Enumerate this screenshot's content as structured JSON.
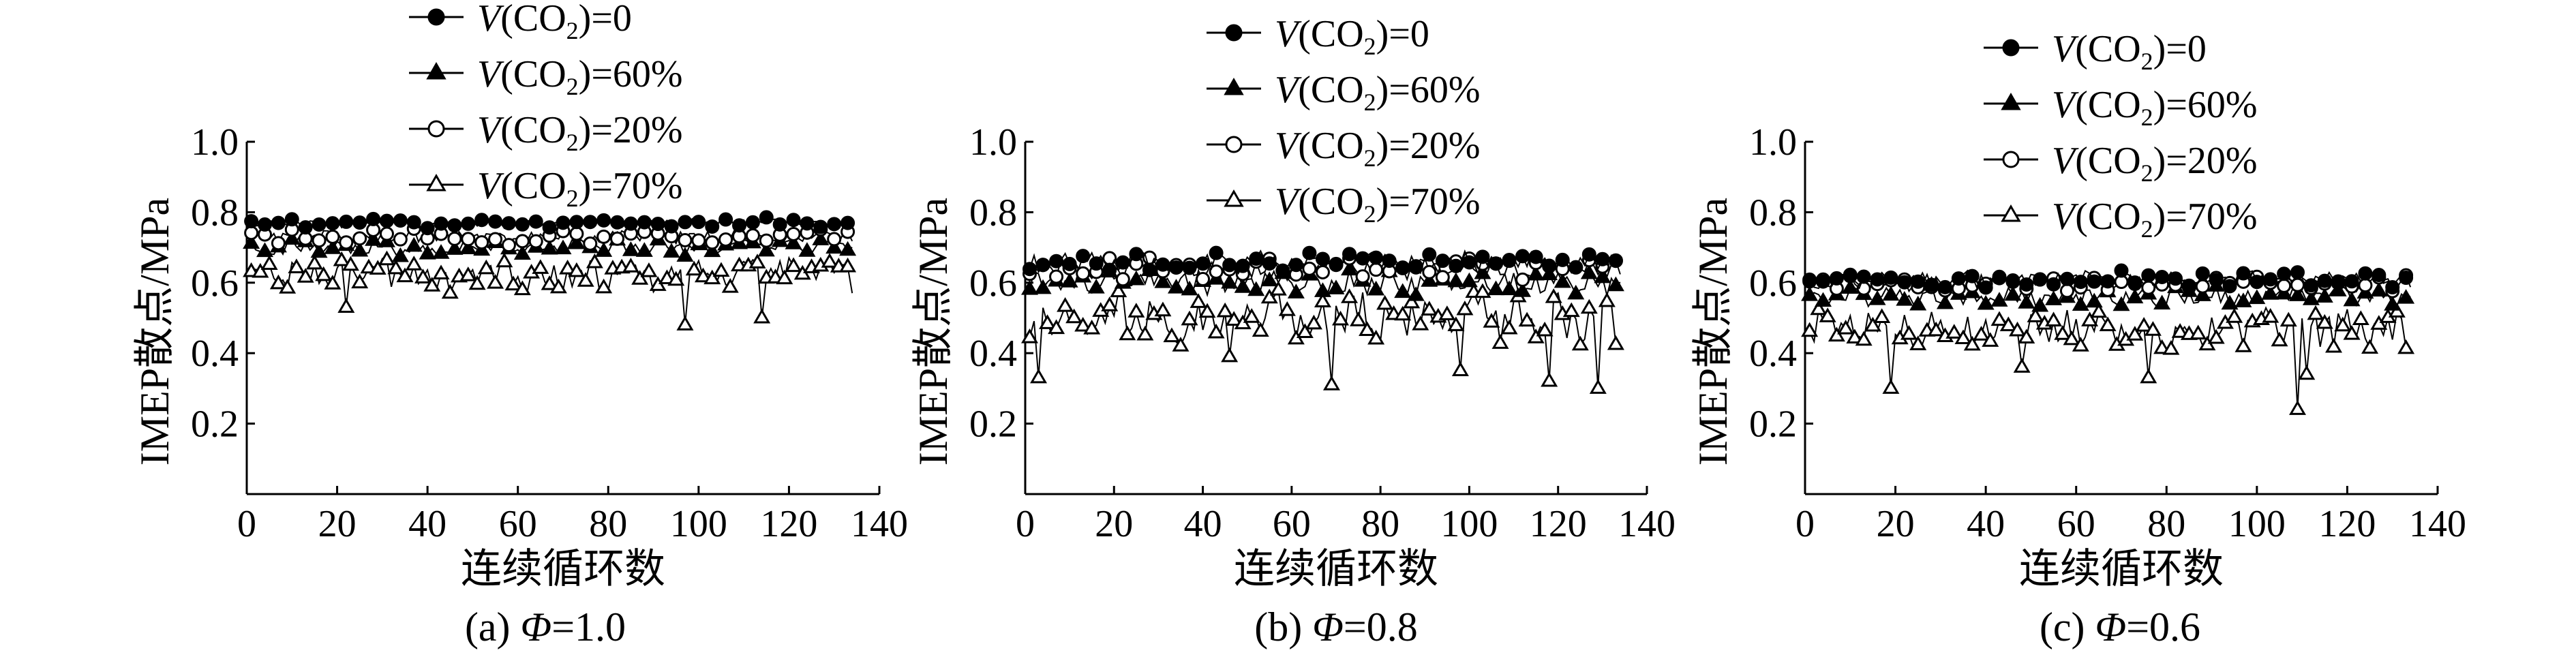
{
  "figure_title": "",
  "legend_labels": {
    "co2_0": {
      "prefix": "V",
      "open": "(CO",
      "sub": "2",
      "close": ")=0"
    },
    "co2_60": {
      "prefix": "V",
      "open": "(CO",
      "sub": "2",
      "close": ")=60%"
    },
    "co2_20": {
      "prefix": "V",
      "open": "(CO",
      "sub": "2",
      "close": ")=20%"
    },
    "co2_70": {
      "prefix": "V",
      "open": "(CO",
      "sub": "2",
      "close": ")=70%"
    }
  },
  "styles": {
    "line_color": "#000000",
    "background": "#ffffff"
  },
  "chart_data": [
    {
      "type": "scatter",
      "caption": {
        "prefix": "(a) ",
        "symbol": "Φ",
        "suffix": "=1.0"
      },
      "xlabel": "连续循环数",
      "ylabel": "IMEP散点/MPa",
      "xlim": [
        0,
        140
      ],
      "ylim": [
        0,
        1.0
      ],
      "xticks": [
        "0",
        "20",
        "40",
        "60",
        "80",
        "100",
        "120",
        "140"
      ],
      "yticks": [
        "0.2",
        "0.4",
        "0.6",
        "0.8",
        "1.0"
      ],
      "legend_position": "top",
      "n_points": 134,
      "series": [
        {
          "key": "co2_0",
          "marker": "filled-circle",
          "mean": 0.77,
          "spread": 0.012,
          "dips": []
        },
        {
          "key": "co2_20",
          "marker": "open-circle",
          "mean": 0.73,
          "spread": 0.018,
          "dips": []
        },
        {
          "key": "co2_60",
          "marker": "filled-triangle",
          "mean": 0.7,
          "spread": 0.02,
          "dips": []
        },
        {
          "key": "co2_70",
          "marker": "open-triangle",
          "mean": 0.62,
          "spread": 0.04,
          "dips": [
            [
              21,
              0.53
            ],
            [
              96,
              0.48
            ],
            [
              113,
              0.5
            ],
            [
              44,
              0.57
            ]
          ]
        }
      ]
    },
    {
      "type": "scatter",
      "caption": {
        "prefix": "(b) ",
        "symbol": "Φ",
        "suffix": "=0.8"
      },
      "xlabel": "连续循环数",
      "ylabel": "IMEP散点/MPa",
      "xlim": [
        0,
        140
      ],
      "ylim": [
        0,
        1.0
      ],
      "xticks": [
        "0",
        "20",
        "40",
        "60",
        "80",
        "100",
        "120",
        "140"
      ],
      "yticks": [
        "0.2",
        "0.4",
        "0.6",
        "0.8",
        "1.0"
      ],
      "legend_position": "top-right",
      "n_points": 134,
      "series": [
        {
          "key": "co2_0",
          "marker": "filled-circle",
          "mean": 0.66,
          "spread": 0.025,
          "dips": []
        },
        {
          "key": "co2_20",
          "marker": "open-circle",
          "mean": 0.64,
          "spread": 0.025,
          "dips": []
        },
        {
          "key": "co2_60",
          "marker": "filled-triangle",
          "mean": 0.6,
          "spread": 0.03,
          "dips": []
        },
        {
          "key": "co2_70",
          "marker": "open-triangle",
          "mean": 0.5,
          "spread": 0.06,
          "dips": [
            [
              2,
              0.33
            ],
            [
              45,
              0.39
            ],
            [
              68,
              0.31
            ],
            [
              97,
              0.35
            ],
            [
              117,
              0.32
            ],
            [
              128,
              0.3
            ]
          ]
        }
      ]
    },
    {
      "type": "scatter",
      "caption": {
        "prefix": "(c) ",
        "symbol": "Φ",
        "suffix": "=0.6"
      },
      "xlabel": "连续循环数",
      "ylabel": "IMEP散点/MPa",
      "xlim": [
        0,
        140
      ],
      "ylim": [
        0,
        1.0
      ],
      "xticks": [
        "0",
        "20",
        "40",
        "60",
        "80",
        "100",
        "120",
        "140"
      ],
      "yticks": [
        "0.2",
        "0.4",
        "0.6",
        "0.8",
        "1.0"
      ],
      "legend_position": "top-right",
      "n_points": 134,
      "series": [
        {
          "key": "co2_0",
          "marker": "filled-circle",
          "mean": 0.61,
          "spread": 0.02,
          "dips": []
        },
        {
          "key": "co2_20",
          "marker": "open-circle",
          "mean": 0.6,
          "spread": 0.02,
          "dips": []
        },
        {
          "key": "co2_60",
          "marker": "filled-triangle",
          "mean": 0.56,
          "spread": 0.025,
          "dips": []
        },
        {
          "key": "co2_70",
          "marker": "open-triangle",
          "mean": 0.47,
          "spread": 0.05,
          "dips": [
            [
              18,
              0.3
            ],
            [
              47,
              0.36
            ],
            [
              75,
              0.33
            ],
            [
              108,
              0.24
            ],
            [
              110,
              0.34
            ]
          ]
        }
      ]
    }
  ]
}
